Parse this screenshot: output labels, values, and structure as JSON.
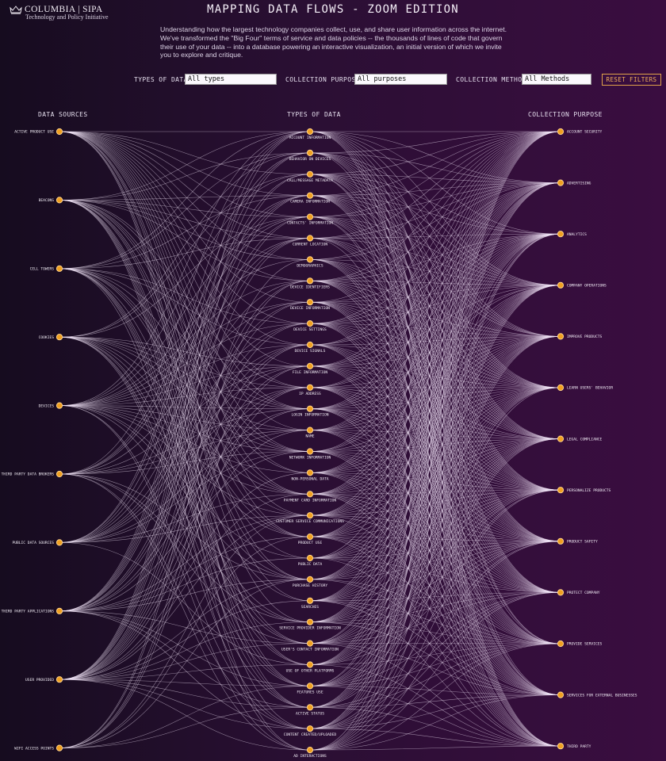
{
  "header": {
    "logo_text": "COLUMBIA | SIPA",
    "logo_subtext": "Technology and Policy Initiative",
    "title": "MAPPING DATA FLOWS - ZOOM EDITION",
    "intro": "Understanding how the largest technology companies collect, use, and share user information across the internet. We've transformed the \"Big Four\" terms of service and data policies -- the thousands of lines of code that govern their use of your data -- into a database powering an interactive visualization, an initial version of which we invite you to explore and critique."
  },
  "filters": {
    "types_label": "TYPES OF DATA",
    "types_value": "All types",
    "purpose_label": "COLLECTION PURPOSE",
    "purpose_value": "All purposes",
    "method_label": "COLLECTION METHOD",
    "method_value": "All Methods",
    "reset_label": "RESET FILTERS"
  },
  "columns": {
    "sources_title": "DATA SOURCES",
    "types_title": "TYPES OF DATA",
    "purposes_title": "COLLECTION PURPOSE"
  },
  "sources": [
    "ACTIVE PRODUCT USE",
    "BEACONS",
    "CELL TOWERS",
    "COOKIES",
    "DEVICES",
    "THIRD PARTY DATA BROKERS",
    "PUBLIC DATA SOURCES",
    "THIRD PARTY APPLICATIONS",
    "USER PROVIDED",
    "WIFI ACCESS POINTS"
  ],
  "types": [
    "ACCOUNT INFORMATION",
    "BEHAVIOR ON DEVICES",
    "CALL/MESSAGE METADATA",
    "CAMERA INFORMATION",
    "CONTACTS' INFORMATION",
    "CURRENT LOCATION",
    "DEMOGRAPHICS",
    "DEVICE IDENTIFIERS",
    "DEVICE INFORMATION",
    "DEVICE SETTINGS",
    "DEVICE SIGNALS",
    "FILE INFORMATION",
    "IP ADDRESS",
    "LOGIN INFORMATION",
    "NAME",
    "NETWORK INFORMATION",
    "NON-PERSONAL DATA",
    "PAYMENT CARD INFORMATION",
    "CUSTOMER SERVICE COMMUNICATIONS",
    "PRODUCT USE",
    "PUBLIC DATA",
    "PURCHASE HISTORY",
    "SEARCHES",
    "SERVICE PROVIDER INFORMATION",
    "USER'S CONTACT INFORMATION",
    "USE OF OTHER PLATFORMS",
    "FEATURES USE",
    "ACTIVE STATUS",
    "CONTENT CREATED/UPLOADED",
    "AD INTERACTIONS"
  ],
  "purposes": [
    "ACCOUNT SECURITY",
    "ADVERTISING",
    "ANALYTICS",
    "COMPANY OPERATIONS",
    "IMPROVE PRODUCTS",
    "LEARN USERS' BEHAVIOR",
    "LEGAL COMPLIANCE",
    "PERSONALIZE PRODUCTS",
    "PRODUCT SAFETY",
    "PROTECT COMPANY",
    "PROVIDE SERVICES",
    "SERVICES FOR EXTERNAL BUSINESSES",
    "THIRD PARTY"
  ],
  "colors": {
    "node_fill": "#f0a020",
    "node_stroke": "#ffd28a",
    "link": "#f3e6f7",
    "accent": "#f2b25a"
  }
}
